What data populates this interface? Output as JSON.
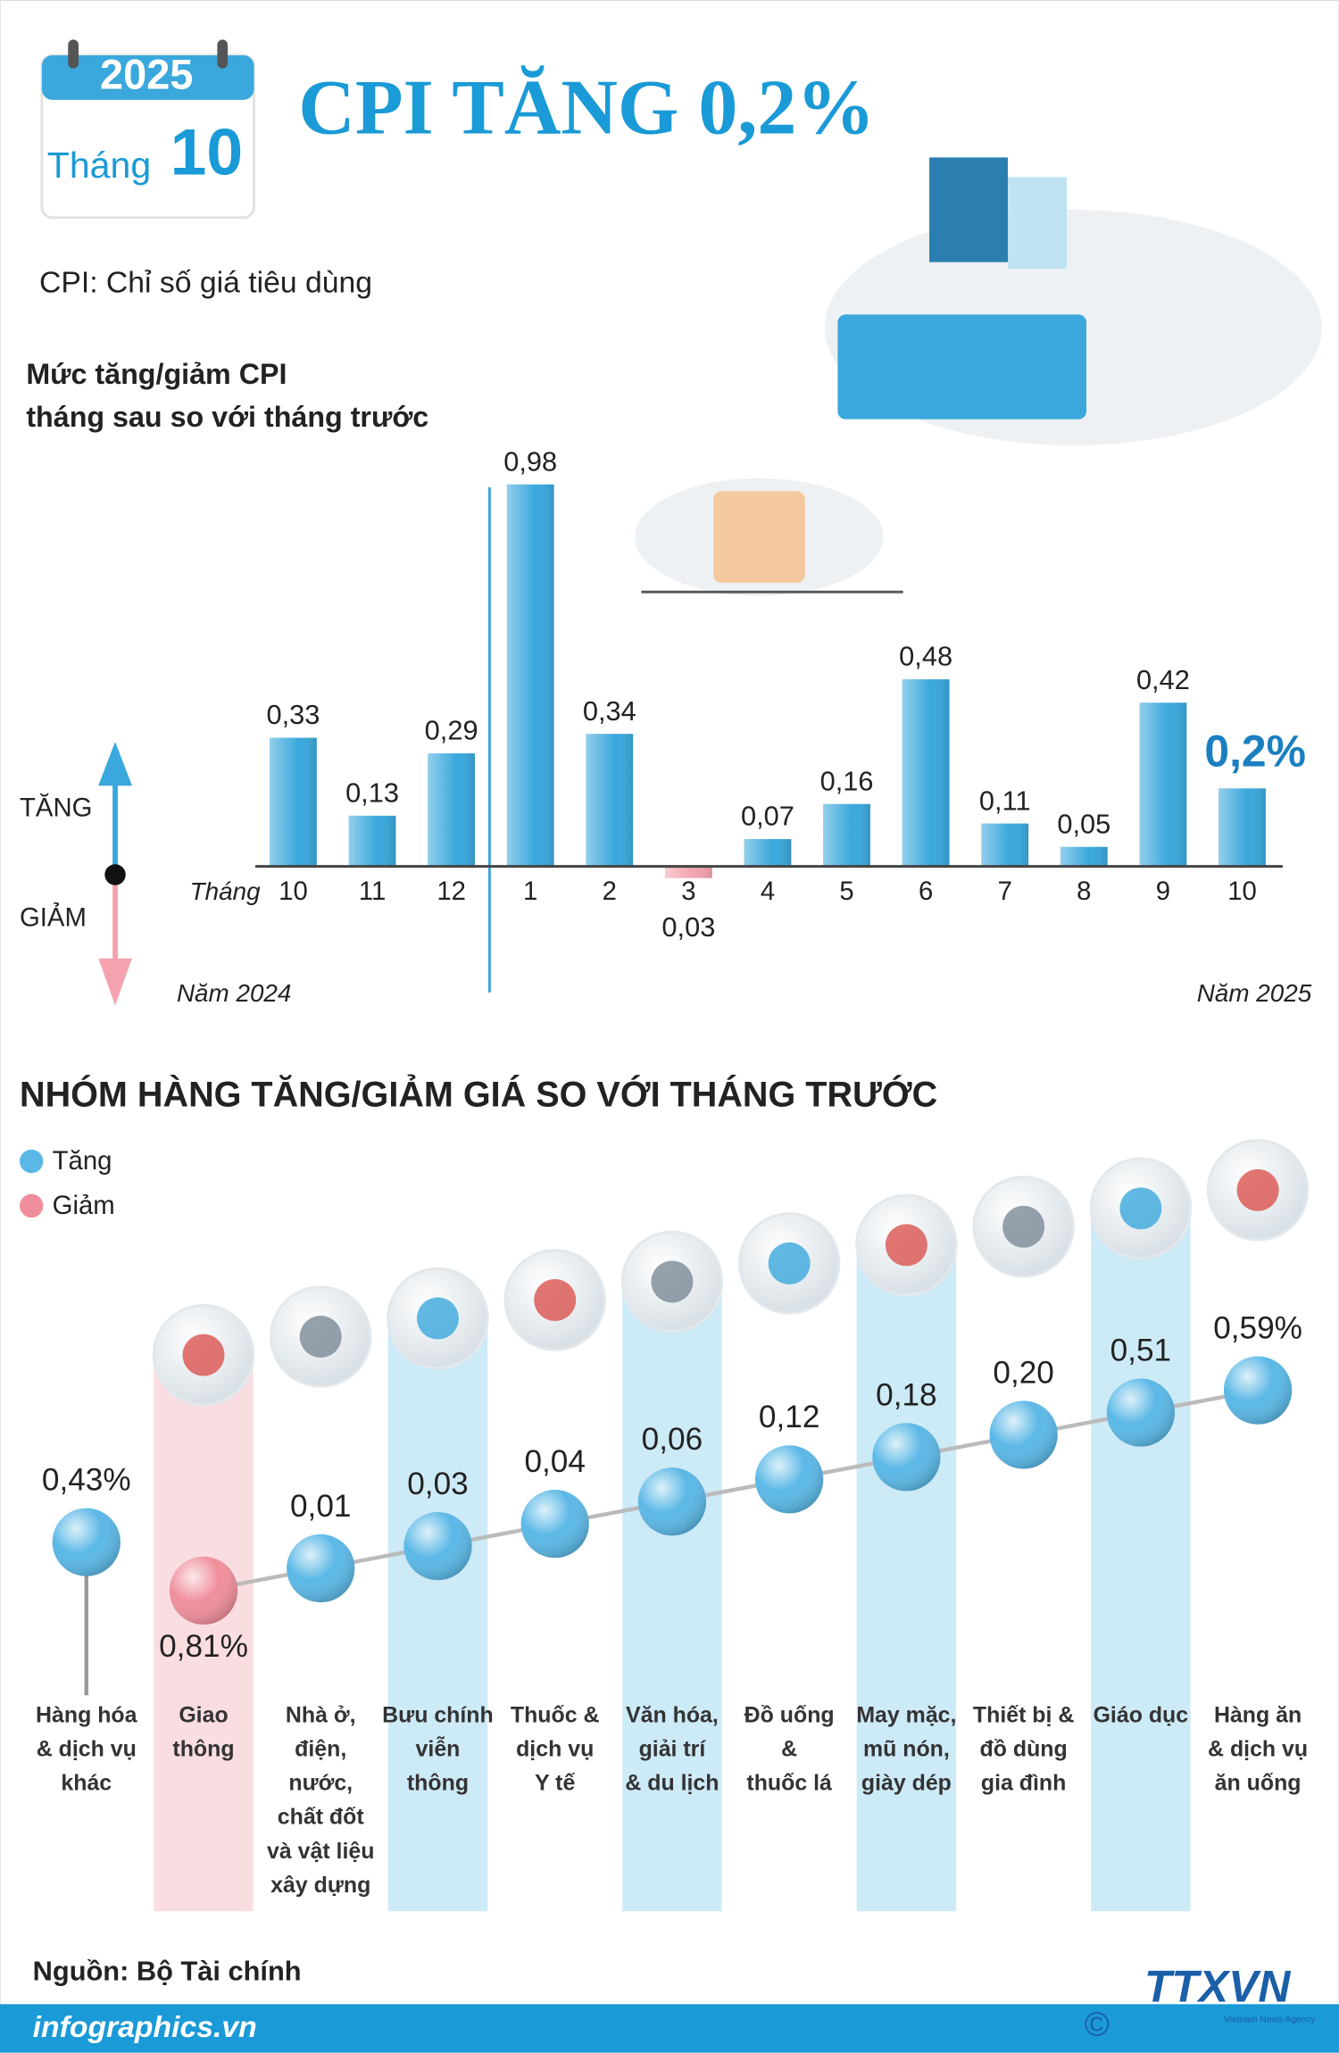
{
  "header": {
    "calendar_year": "2025",
    "calendar_month_label": "Tháng",
    "calendar_month": "10",
    "title": "CPI TĂNG 0,2%",
    "subtitle": "CPI: Chỉ số giá tiêu dùng"
  },
  "chart_data": [
    {
      "type": "bar",
      "title": [
        "Mức tăng/giảm CPI",
        "tháng sau so với tháng trước"
      ],
      "x_label": "Tháng",
      "categories": [
        "10",
        "11",
        "12",
        "1",
        "2",
        "3",
        "4",
        "5",
        "6",
        "7",
        "8",
        "9",
        "10"
      ],
      "values": [
        0.33,
        0.13,
        0.29,
        0.98,
        0.34,
        -0.03,
        0.07,
        0.16,
        0.48,
        0.11,
        0.05,
        0.42,
        0.2
      ],
      "value_labels": [
        "0,33",
        "0,13",
        "0,29",
        "0,98",
        "0,34",
        "0,03",
        "0,07",
        "0,16",
        "0,48",
        "0,11",
        "0,05",
        "0,42",
        "0,2%"
      ],
      "period_labels": [
        "Năm 2024",
        "Năm 2025"
      ],
      "direction_labels": [
        "TĂNG",
        "GIẢM"
      ],
      "color": "#3aa8dc",
      "negative_color": "#f4a3ae",
      "ylim": [
        -0.3,
        1.05
      ]
    },
    {
      "type": "dot",
      "title": "NHÓM HÀNG TĂNG/GIẢM GIÁ SO VỚI THÁNG TRƯỚC",
      "legend": [
        {
          "name": "Tăng",
          "color": "#5bb8e6"
        },
        {
          "name": "Giảm",
          "color": "#f08f9c"
        }
      ],
      "categories": [
        [
          "Hàng hóa",
          "& dịch vụ",
          "khác"
        ],
        [
          "Giao",
          "thông"
        ],
        [
          "Nhà ở,",
          "điện,",
          "nước,",
          "chất đốt",
          "và vật liệu",
          "xây dựng"
        ],
        [
          "Bưu chính",
          "viễn",
          "thông"
        ],
        [
          "Thuốc &",
          "dịch vụ",
          "Y tế"
        ],
        [
          "Văn hóa,",
          "giải trí",
          "& du lịch"
        ],
        [
          "Đồ uống",
          "&",
          "thuốc lá"
        ],
        [
          "May mặc,",
          "mũ nón,",
          "giày dép"
        ],
        [
          "Thiết bị &",
          "đồ dùng",
          "gia đình"
        ],
        [
          "Giáo dục"
        ],
        [
          "Hàng ăn",
          "& dịch vụ",
          "ăn uống"
        ]
      ],
      "values": [
        0.43,
        -0.81,
        0.01,
        0.03,
        0.04,
        0.06,
        0.12,
        0.18,
        0.2,
        0.51,
        0.59
      ],
      "value_labels": [
        "0,43%",
        "0,81%",
        "0,01",
        "0,03",
        "0,04",
        "0,06",
        "0,12",
        "0,18",
        "0,20",
        "0,51",
        "0,59%"
      ]
    }
  ],
  "footer": {
    "source": "Nguồn: Bộ Tài chính",
    "site": "infographics.vn",
    "copyright": "©",
    "agency": "TTXVN",
    "agency_en": "Vietnam News Agency"
  }
}
